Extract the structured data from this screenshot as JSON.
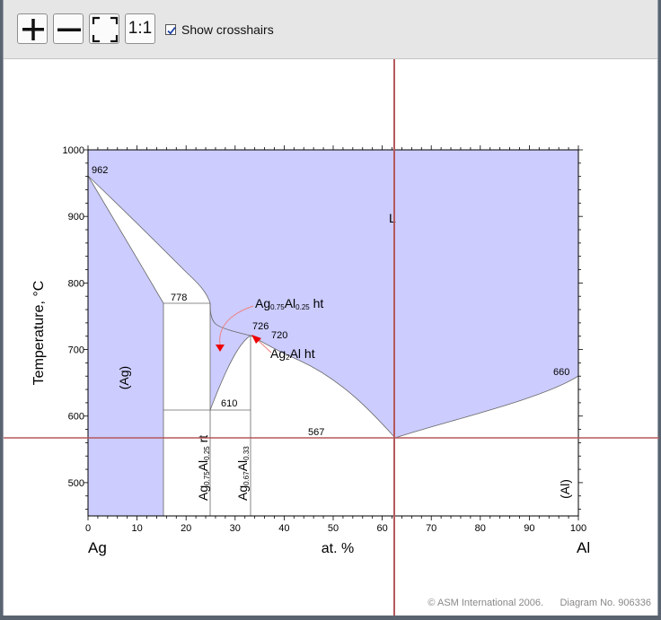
{
  "toolbar": {
    "zoom_in_icon": "plus-icon",
    "zoom_out_icon": "minus-icon",
    "fit_icon": "fit-to-window-icon",
    "actual_size_label": "1:1",
    "crosshairs_label": "Show crosshairs",
    "crosshairs_checked": true
  },
  "diagram": {
    "y_axis_label": "Temperature, °C",
    "x_axis_label": "at. %",
    "left_element": "Ag",
    "right_element": "Al",
    "x_ticks": [
      "0",
      "10",
      "20",
      "30",
      "40",
      "50",
      "60",
      "70",
      "80",
      "90",
      "100"
    ],
    "y_ticks": [
      "1000",
      "900",
      "800",
      "700",
      "600",
      "500"
    ],
    "temps": {
      "t962": "962",
      "t778": "778",
      "t726": "726",
      "t720": "720",
      "t660": "660",
      "t610": "610",
      "t567": "567"
    },
    "phase_L": "L",
    "phase_ag": "(Ag)",
    "phase_al": "(Al)",
    "ag075_base": "Ag",
    "ag075_sub1": "0.75",
    "ag075_mid": "Al",
    "ag075_sub2": "0.25",
    "ag075_ht_suffix": " ht",
    "ag075_rt_suffix": " rt",
    "ag2al_base": "Ag",
    "ag2al_sub": "2",
    "ag2al_suffix": "Al ht",
    "ag067_base": "Ag",
    "ag067_sub1": "0.67",
    "ag067_mid": "Al",
    "ag067_sub2": "0.33",
    "copyright": "© ASM International 2006.",
    "diagram_no": "Diagram No. 906336",
    "fill_color": "#ccccff",
    "crosshair_color": "#b5585c",
    "arrow_color": "#ee0000"
  }
}
